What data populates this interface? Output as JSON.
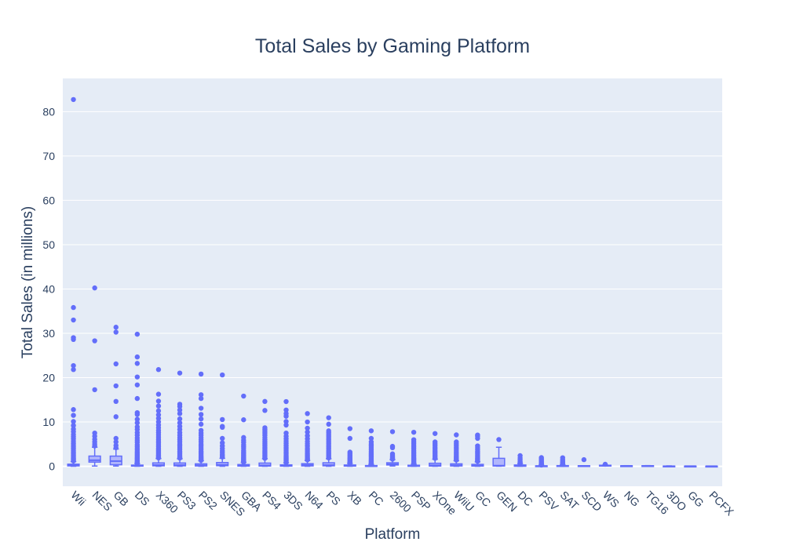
{
  "chart_data": {
    "type": "box",
    "title": "Total Sales by Gaming Platform",
    "xlabel": "Platform",
    "ylabel": "Total Sales (in millions)",
    "ylim": [
      -4.5,
      87.5
    ],
    "yticks": [
      0,
      10,
      20,
      30,
      40,
      50,
      60,
      70,
      80
    ],
    "grid": true,
    "legend": "none",
    "colors": {
      "plot_bg": "#e5ecf6",
      "grid": "#ffffff",
      "series": "#636efa",
      "box_fill": "#b1b6fc",
      "text": "#2a3f5f"
    },
    "categories": [
      "Wii",
      "NES",
      "GB",
      "DS",
      "X360",
      "PS3",
      "PS2",
      "SNES",
      "GBA",
      "PS4",
      "3DS",
      "N64",
      "PS",
      "XB",
      "PC",
      "2600",
      "PSP",
      "XOne",
      "WiiU",
      "GC",
      "GEN",
      "DC",
      "PSV",
      "SAT",
      "SCD",
      "WS",
      "NG",
      "TG16",
      "3DO",
      "GG",
      "PCFX"
    ],
    "boxes": [
      {
        "q1": 0.09,
        "median": 0.19,
        "q3": 0.48,
        "lower": 0.01,
        "upper": 1.05,
        "outliers": [
          82.74,
          35.82,
          33.0,
          29.02,
          28.62,
          22.72,
          21.82,
          12.8,
          11.5,
          10.1,
          9.2,
          8.4,
          7.8,
          7.2,
          6.7,
          6.2,
          5.7,
          5.2,
          4.8,
          4.4,
          4.0,
          3.6,
          3.2,
          2.9,
          2.6,
          2.3,
          2.0,
          1.8,
          1.6,
          1.4,
          1.2
        ]
      },
      {
        "q1": 0.95,
        "median": 1.37,
        "q3": 2.31,
        "lower": 0.06,
        "upper": 4.3,
        "outliers": [
          40.24,
          28.31,
          17.28,
          7.5,
          6.8,
          6.1,
          5.5,
          5.0,
          4.6
        ]
      },
      {
        "q1": 0.35,
        "median": 1.17,
        "q3": 2.3,
        "lower": 0.06,
        "upper": 3.9,
        "outliers": [
          31.37,
          30.26,
          23.1,
          18.14,
          14.64,
          11.18,
          6.3,
          5.5,
          4.7,
          4.2
        ]
      },
      {
        "q1": 0.05,
        "median": 0.11,
        "q3": 0.27,
        "lower": 0.01,
        "upper": 0.6,
        "outliers": [
          29.8,
          24.67,
          23.21,
          20.15,
          18.36,
          15.3,
          12.1,
          11.7,
          10.6,
          9.8,
          8.9,
          8.3,
          7.6,
          7.0,
          6.4,
          5.9,
          5.4,
          4.9,
          4.5,
          4.1,
          3.7,
          3.3,
          3.0,
          2.7,
          2.4,
          2.1,
          1.9,
          1.7,
          1.5,
          1.3,
          1.1,
          0.95,
          0.85,
          0.75,
          0.7,
          0.65
        ]
      },
      {
        "q1": 0.11,
        "median": 0.28,
        "q3": 0.77,
        "lower": 0.01,
        "upper": 1.75,
        "outliers": [
          21.82,
          16.27,
          14.7,
          13.6,
          12.5,
          11.6,
          10.8,
          10.0,
          9.3,
          8.7,
          8.1,
          7.6,
          7.1,
          6.6,
          6.1,
          5.7,
          5.3,
          4.9,
          4.5,
          4.1,
          3.8,
          3.5,
          3.2,
          2.9,
          2.6,
          2.4,
          2.2,
          2.0,
          1.9
        ]
      },
      {
        "q1": 0.11,
        "median": 0.27,
        "q3": 0.75,
        "lower": 0.01,
        "upper": 1.7,
        "outliers": [
          21.04,
          14.0,
          13.5,
          12.7,
          11.9,
          10.7,
          9.8,
          9.0,
          8.3,
          7.6,
          7.0,
          6.5,
          6.0,
          5.5,
          5.0,
          4.6,
          4.2,
          3.8,
          3.4,
          3.1,
          2.8,
          2.5,
          2.2,
          2.0,
          1.85
        ]
      },
      {
        "q1": 0.08,
        "median": 0.23,
        "q3": 0.56,
        "lower": 0.01,
        "upper": 1.25,
        "outliers": [
          20.81,
          16.15,
          15.3,
          13.1,
          11.7,
          10.7,
          9.5,
          8.1,
          7.5,
          7.0,
          6.5,
          6.0,
          5.5,
          5.0,
          4.6,
          4.2,
          3.8,
          3.4,
          3.1,
          2.8,
          2.5,
          2.2,
          2.0,
          1.8,
          1.6,
          1.45,
          1.35
        ]
      },
      {
        "q1": 0.14,
        "median": 0.32,
        "q3": 0.85,
        "lower": 0.01,
        "upper": 1.8,
        "outliers": [
          20.61,
          10.55,
          9.0,
          8.8,
          6.3,
          5.3,
          4.6,
          4.0,
          3.5,
          3.1,
          2.7,
          2.4,
          2.1
        ]
      },
      {
        "q1": 0.06,
        "median": 0.16,
        "q3": 0.4,
        "lower": 0.01,
        "upper": 0.9,
        "outliers": [
          15.84,
          10.5,
          6.5,
          5.9,
          5.4,
          4.9,
          4.5,
          4.1,
          3.6,
          3.2,
          2.9,
          2.6,
          2.3,
          2.0,
          1.8,
          1.6,
          1.4,
          1.2,
          1.05,
          0.95
        ]
      },
      {
        "q1": 0.06,
        "median": 0.2,
        "q3": 0.73,
        "lower": 0.01,
        "upper": 1.7,
        "outliers": [
          14.63,
          12.6,
          8.7,
          8.3,
          7.9,
          7.5,
          7.0,
          6.5,
          6.0,
          5.5,
          5.1,
          4.7,
          4.3,
          3.9,
          3.5,
          3.2,
          2.9,
          2.6,
          2.3,
          2.0,
          1.8
        ]
      },
      {
        "q1": 0.05,
        "median": 0.12,
        "q3": 0.33,
        "lower": 0.01,
        "upper": 0.75,
        "outliers": [
          14.6,
          12.7,
          11.9,
          11.3,
          10.1,
          9.3,
          7.5,
          6.8,
          6.2,
          5.7,
          5.2,
          4.7,
          4.3,
          3.9,
          3.5,
          3.1,
          2.8,
          2.5,
          2.2,
          2.0,
          1.8,
          1.6,
          1.4,
          1.2,
          1.0,
          0.85
        ]
      },
      {
        "q1": 0.09,
        "median": 0.27,
        "q3": 0.6,
        "lower": 0.01,
        "upper": 1.3,
        "outliers": [
          11.9,
          10.0,
          8.6,
          7.7,
          6.9,
          6.2,
          5.6,
          5.1,
          4.6,
          4.1,
          3.7,
          3.3,
          2.9,
          2.6,
          2.3,
          2.0,
          1.8,
          1.6,
          1.45
        ]
      },
      {
        "q1": 0.11,
        "median": 0.26,
        "q3": 0.8,
        "lower": 0.01,
        "upper": 1.7,
        "outliers": [
          10.95,
          9.5,
          8.0,
          7.6,
          7.2,
          6.8,
          6.4,
          6.0,
          5.6,
          5.2,
          4.8,
          4.4,
          4.0,
          3.6,
          3.3,
          3.0,
          2.7,
          2.4,
          2.1,
          1.9
        ]
      },
      {
        "q1": 0.06,
        "median": 0.15,
        "q3": 0.3,
        "lower": 0.01,
        "upper": 0.65,
        "outliers": [
          8.5,
          6.3,
          3.2,
          2.9,
          2.6,
          2.3,
          2.0,
          1.8,
          1.6,
          1.4,
          1.2,
          1.05,
          0.9,
          0.8,
          0.72
        ]
      },
      {
        "q1": 0.02,
        "median": 0.04,
        "q3": 0.17,
        "lower": 0.01,
        "upper": 0.4,
        "outliers": [
          8.01,
          6.3,
          5.5,
          5.0,
          4.6,
          4.2,
          3.8,
          3.4,
          3.0,
          2.7,
          2.4,
          2.1,
          1.8,
          1.5,
          1.3,
          1.1,
          0.9,
          0.75,
          0.6,
          0.5
        ]
      },
      {
        "q1": 0.3,
        "median": 0.46,
        "q3": 0.8,
        "lower": 0.07,
        "upper": 1.5,
        "outliers": [
          7.81,
          4.5,
          4.2,
          2.8,
          2.5,
          2.2,
          2.0,
          1.8,
          1.6
        ]
      },
      {
        "q1": 0.02,
        "median": 0.09,
        "q3": 0.24,
        "lower": 0.01,
        "upper": 0.5,
        "outliers": [
          7.68,
          6.0,
          5.6,
          5.2,
          4.8,
          4.4,
          4.0,
          3.6,
          3.2,
          2.9,
          2.6,
          2.3,
          2.0,
          1.8,
          1.6,
          1.4,
          1.2,
          1.0,
          0.85,
          0.7,
          0.6
        ]
      },
      {
        "q1": 0.06,
        "median": 0.22,
        "q3": 0.69,
        "lower": 0.01,
        "upper": 1.6,
        "outliers": [
          7.39,
          5.5,
          5.1,
          4.7,
          4.3,
          3.9,
          3.5,
          3.2,
          2.9,
          2.6,
          2.3,
          2.0,
          1.8
        ]
      },
      {
        "q1": 0.08,
        "median": 0.22,
        "q3": 0.56,
        "lower": 0.01,
        "upper": 1.25,
        "outliers": [
          7.09,
          5.5,
          5.1,
          4.7,
          4.3,
          3.9,
          3.5,
          3.1,
          2.8,
          2.5,
          2.2,
          2.0,
          1.8,
          1.6,
          1.4
        ]
      },
      {
        "q1": 0.06,
        "median": 0.15,
        "q3": 0.44,
        "lower": 0.01,
        "upper": 1.0,
        "outliers": [
          7.06,
          6.8,
          6.3,
          4.6,
          4.2,
          3.8,
          3.4,
          3.1,
          2.8,
          2.5,
          2.2,
          1.9,
          1.7,
          1.5,
          1.3,
          1.15
        ]
      },
      {
        "q1": 0.08,
        "median": 0.15,
        "q3": 1.8,
        "lower": 0.03,
        "upper": 4.3,
        "outliers": [
          6.03
        ]
      },
      {
        "q1": 0.03,
        "median": 0.08,
        "q3": 0.3,
        "lower": 0.02,
        "upper": 0.6,
        "outliers": [
          2.4,
          1.9,
          1.5,
          1.1,
          0.9,
          0.75
        ]
      },
      {
        "q1": 0.02,
        "median": 0.05,
        "q3": 0.11,
        "lower": 0.01,
        "upper": 0.25,
        "outliers": [
          1.96,
          1.7,
          1.5,
          1.3,
          1.1,
          0.9,
          0.75,
          0.6,
          0.5,
          0.4,
          0.32,
          0.28
        ]
      },
      {
        "q1": 0.03,
        "median": 0.07,
        "q3": 0.16,
        "lower": 0.01,
        "upper": 0.35,
        "outliers": [
          1.93,
          1.5,
          1.2,
          0.95,
          0.8,
          0.65,
          0.55,
          0.45,
          0.4
        ]
      },
      {
        "q1": 0.07,
        "median": 0.09,
        "q3": 0.14,
        "lower": 0.07,
        "upper": 0.14,
        "outliers": [
          1.5
        ]
      },
      {
        "q1": 0.09,
        "median": 0.19,
        "q3": 0.24,
        "lower": 0.08,
        "upper": 0.3,
        "outliers": [
          0.46
        ]
      },
      {
        "q1": 0.06,
        "median": 0.1,
        "q3": 0.12,
        "lower": 0.02,
        "upper": 0.15,
        "outliers": []
      },
      {
        "q1": 0.08,
        "median": 0.08,
        "q3": 0.14,
        "lower": 0.02,
        "upper": 0.16,
        "outliers": []
      },
      {
        "q1": 0.02,
        "median": 0.02,
        "q3": 0.06,
        "lower": 0.02,
        "upper": 0.1,
        "outliers": []
      },
      {
        "q1": 0.04,
        "median": 0.04,
        "q3": 0.04,
        "lower": 0.04,
        "upper": 0.04,
        "outliers": []
      },
      {
        "q1": 0.03,
        "median": 0.03,
        "q3": 0.03,
        "lower": 0.03,
        "upper": 0.03,
        "outliers": []
      }
    ]
  }
}
